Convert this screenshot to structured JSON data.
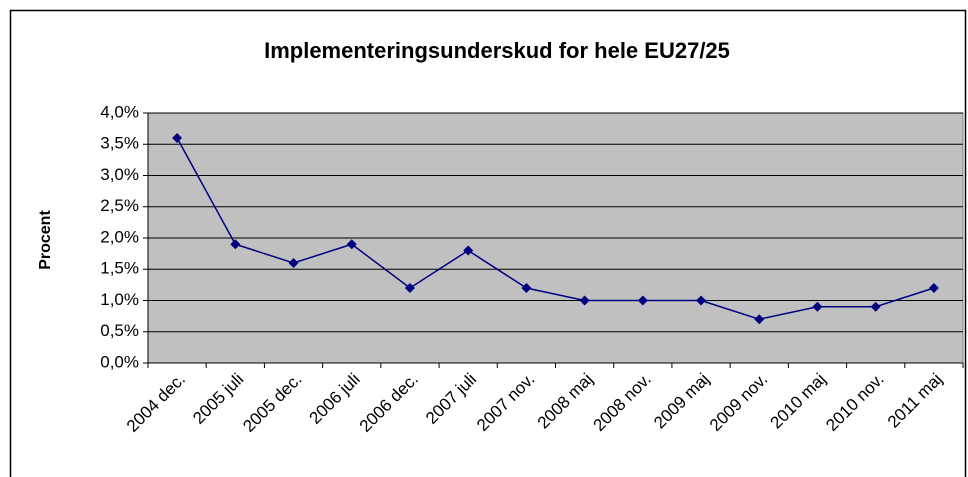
{
  "chart_data": {
    "type": "line",
    "title": "Implementeringsunderskud for hele EU27/25",
    "y_label": "Procent",
    "categories": [
      "2004 dec.",
      "2005 juli",
      "2005 dec.",
      "2006 juli",
      "2006 dec.",
      "2007 juli",
      "2007 nov.",
      "2008 maj",
      "2008 nov.",
      "2009 maj",
      "2009 nov.",
      "2010 maj",
      "2010 nov.",
      "2011 maj"
    ],
    "values": [
      3.6,
      1.9,
      1.6,
      1.9,
      1.2,
      1.8,
      1.2,
      1.0,
      1.0,
      1.0,
      0.7,
      0.9,
      0.9,
      1.2
    ],
    "color": "#000080",
    "ylim": [
      0,
      4
    ],
    "yticks": [
      {
        "value": 0,
        "label": "0,0%"
      },
      {
        "value": 0.5,
        "label": "0,5%"
      },
      {
        "value": 1,
        "label": "1,0%"
      },
      {
        "value": 1.5,
        "label": "1,5%"
      },
      {
        "value": 2,
        "label": "2,0%"
      },
      {
        "value": 2.5,
        "label": "2,5%"
      },
      {
        "value": 3,
        "label": "3,0%"
      },
      {
        "value": 3.5,
        "label": "3,5%"
      },
      {
        "value": 4,
        "label": "4,0%"
      }
    ],
    "grid": true
  }
}
